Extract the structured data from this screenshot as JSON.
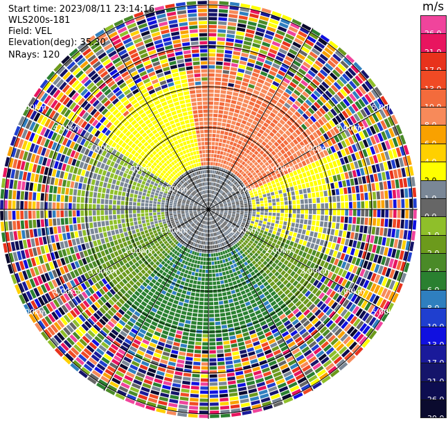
{
  "header": {
    "start_time": "Start time: 2023/08/11 23:14:16",
    "station": "WLS200s-181",
    "field": "Field: VEL",
    "elevation": "Elevation(deg): 35.30",
    "nrays": "NRays: 120"
  },
  "colorbar": {
    "unit": "m/s",
    "levels": [
      {
        "label": "26.0",
        "color": "#f0449c"
      },
      {
        "label": "21.0",
        "color": "#e8155f"
      },
      {
        "label": "17.0",
        "color": "#e8321c"
      },
      {
        "label": "13.0",
        "color": "#f04a24"
      },
      {
        "label": "10.0",
        "color": "#f36b3c"
      },
      {
        "label": "8.0",
        "color": "#f78a5a"
      },
      {
        "label": "6.0",
        "color": "#f9a100"
      },
      {
        "label": "4.0",
        "color": "#ffd000"
      },
      {
        "label": "2.0",
        "color": "#ffff00"
      },
      {
        "label": "1.0",
        "color": "#7a8796"
      },
      {
        "label": "0.0",
        "color": "#666666"
      },
      {
        "label": "-1.0",
        "color": "#8fbf2a"
      },
      {
        "label": "-2.0",
        "color": "#6c9a1c"
      },
      {
        "label": "-4.0",
        "color": "#4a8a28"
      },
      {
        "label": "-6.0",
        "color": "#2a8030"
      },
      {
        "label": "-8.0",
        "color": "#2f7fbf"
      },
      {
        "label": "-10.0",
        "color": "#1f3fcf"
      },
      {
        "label": "-13.0",
        "color": "#1010e0"
      },
      {
        "label": "-17.0",
        "color": "#1a1a9a"
      },
      {
        "label": "-21.0",
        "color": "#15156a"
      },
      {
        "label": "-26.0",
        "color": "#0d0d50"
      },
      {
        "label": "-30.0",
        "color": "#0a0a2e"
      }
    ]
  },
  "range_labels": [
    "1.00km",
    "2.00km",
    "3.00km",
    "4.00km",
    "5.00km"
  ]
}
